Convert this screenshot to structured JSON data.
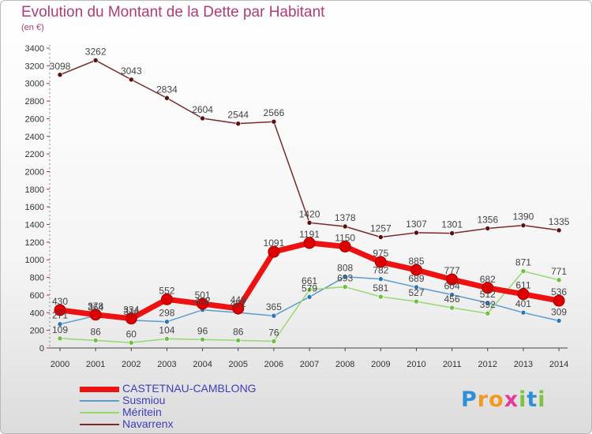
{
  "title": "Evolution du Montant de la Dette par Habitant",
  "subtitle": "(en €)",
  "chart_data": {
    "type": "line",
    "title": "Evolution du Montant de la Dette par Habitant",
    "ylabel": "(en €)",
    "ylim": [
      0,
      3400
    ],
    "yticks": [
      0,
      200,
      400,
      600,
      800,
      1000,
      1200,
      1400,
      1600,
      1800,
      2000,
      2200,
      2400,
      2600,
      2800,
      3000,
      3200,
      3400
    ],
    "x": [
      "2000",
      "2001",
      "2002",
      "2003",
      "2004",
      "2005",
      "2006",
      "2007",
      "2008",
      "2009",
      "2010",
      "2011",
      "2012",
      "2013",
      "2014"
    ],
    "grid": false,
    "legend_position": "bottom-left",
    "series": [
      {
        "name": "Navarrenx",
        "color": "#7a2a2a",
        "width": 1.5,
        "point": "#5a1010",
        "values": [
          3098,
          3262,
          3043,
          2834,
          2604,
          2544,
          2566,
          1420,
          1378,
          1257,
          1307,
          1301,
          1356,
          1390,
          1335
        ],
        "labels": [
          "3098",
          "3262",
          "3043",
          "2834",
          "2604",
          "2544",
          "2566",
          "1420",
          "1378",
          "1257",
          "1307",
          "1301",
          "1356",
          "1390",
          "1335"
        ]
      },
      {
        "name": "Susmiou",
        "color": "#5c9cd0",
        "width": 1.5,
        "point": "#2f76b8",
        "values": [
          271,
          364,
          314,
          298,
          432,
          401,
          365,
          579,
          808,
          782,
          689,
          604,
          512,
          401,
          309
        ],
        "labels": [
          "271",
          "364",
          "314",
          "298",
          "432",
          "401",
          "365",
          "579",
          "808",
          "782",
          "689",
          "604",
          "512",
          "401",
          "309"
        ]
      },
      {
        "name": "Méritein",
        "color": "#96d870",
        "width": 1.5,
        "point": "#6cc040",
        "values": [
          109,
          86,
          60,
          104,
          96,
          86,
          76,
          661,
          693,
          581,
          527,
          456,
          392,
          871,
          771
        ],
        "labels": [
          "109",
          "86",
          "60",
          "104",
          "96",
          "86",
          "76",
          "661",
          "693",
          "581",
          "527",
          "456",
          "392",
          "871",
          "771"
        ]
      },
      {
        "name": "CASTETNAU-CAMBLONG",
        "color": "#ee1111",
        "width": 7,
        "point": "#dd0000",
        "values": [
          430,
          378,
          334,
          552,
          501,
          448,
          1091,
          1191,
          1150,
          975,
          885,
          777,
          682,
          611,
          536
        ],
        "labels": [
          "430",
          "378",
          "334",
          "552",
          "501",
          "448",
          "1091",
          "1191",
          "1150",
          "975",
          "885",
          "777",
          "682",
          "611",
          "536"
        ]
      }
    ]
  },
  "legend": [
    {
      "name": "CASTETNAU-CAMBLONG",
      "color": "#ee1111",
      "thickness": 7
    },
    {
      "name": "Susmiou",
      "color": "#5c9cd0",
      "thickness": 2
    },
    {
      "name": "Méritein",
      "color": "#96d870",
      "thickness": 2
    },
    {
      "name": "Navarrenx",
      "color": "#7a2a2a",
      "thickness": 2
    }
  ],
  "logo": {
    "letters": [
      "P",
      "r",
      "o",
      "x",
      "i",
      "t",
      "i"
    ],
    "colors": [
      "#2e8fd6",
      "#f29a1f",
      "#f29a1f",
      "#e23b9a",
      "#7cc242",
      "#2e8fd6",
      "#7cc242"
    ]
  }
}
